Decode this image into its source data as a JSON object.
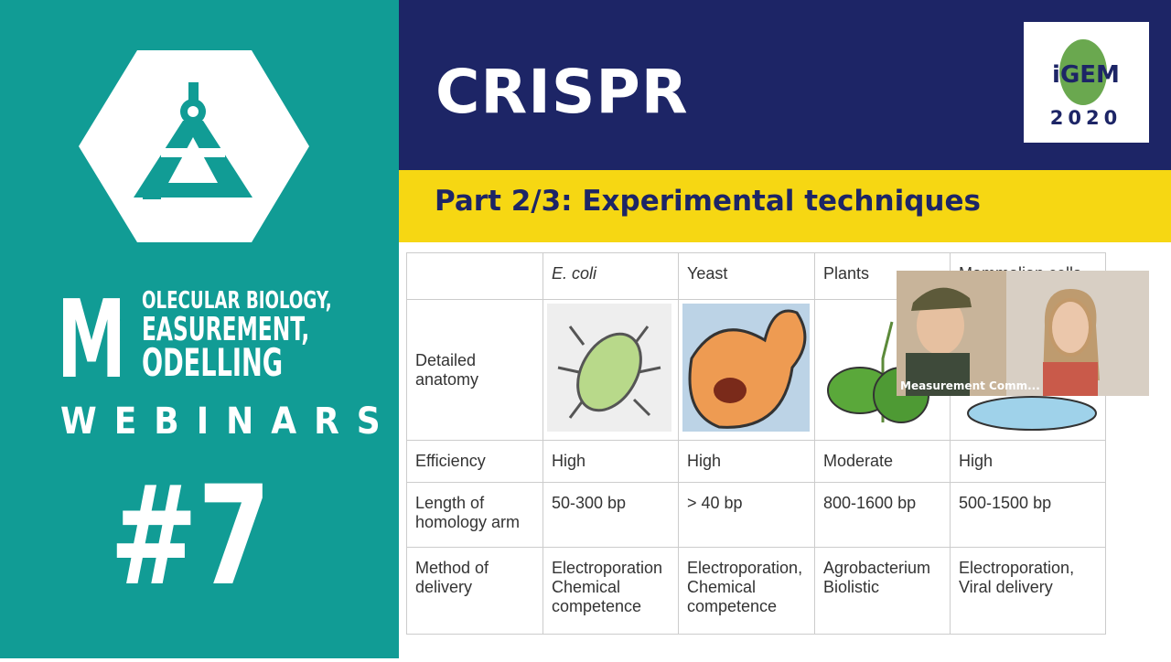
{
  "sidebar": {
    "letter": "M",
    "lines": [
      "OLECULAR BIOLOGY,",
      "EASUREMENT,",
      "ODELLING"
    ],
    "series": "WEBINARS",
    "number": "#7"
  },
  "slide": {
    "title": "CRISPR",
    "subtitle": "Part 2/3: Experimental techniques",
    "logo": {
      "name": "iGEM",
      "year": "2020"
    },
    "table": {
      "columns": [
        "E. coli",
        "Yeast",
        "Plants",
        "Mammalian cells"
      ],
      "rows": [
        {
          "label": [
            "Detailed",
            "anatomy"
          ]
        },
        {
          "label": [
            "Efficiency"
          ],
          "cells": [
            [
              "High"
            ],
            [
              "High"
            ],
            [
              "Moderate"
            ],
            [
              "High"
            ]
          ]
        },
        {
          "label": [
            "Length of",
            "homology arm"
          ],
          "cells": [
            [
              "50-300 bp"
            ],
            [
              "> 40 bp"
            ],
            [
              "800-1600 bp"
            ],
            [
              "500-1500 bp"
            ]
          ]
        },
        {
          "label": [
            "Method of",
            "delivery"
          ],
          "cells": [
            [
              "Electroporation",
              "Chemical",
              "competence"
            ],
            [
              "Electroporation,",
              "Chemical",
              "competence"
            ],
            [
              "Agrobacterium",
              "Biolistic"
            ],
            [
              "Electroporation,",
              "Viral delivery"
            ]
          ]
        }
      ]
    }
  },
  "video": {
    "caption": "Measurement Comm..."
  }
}
